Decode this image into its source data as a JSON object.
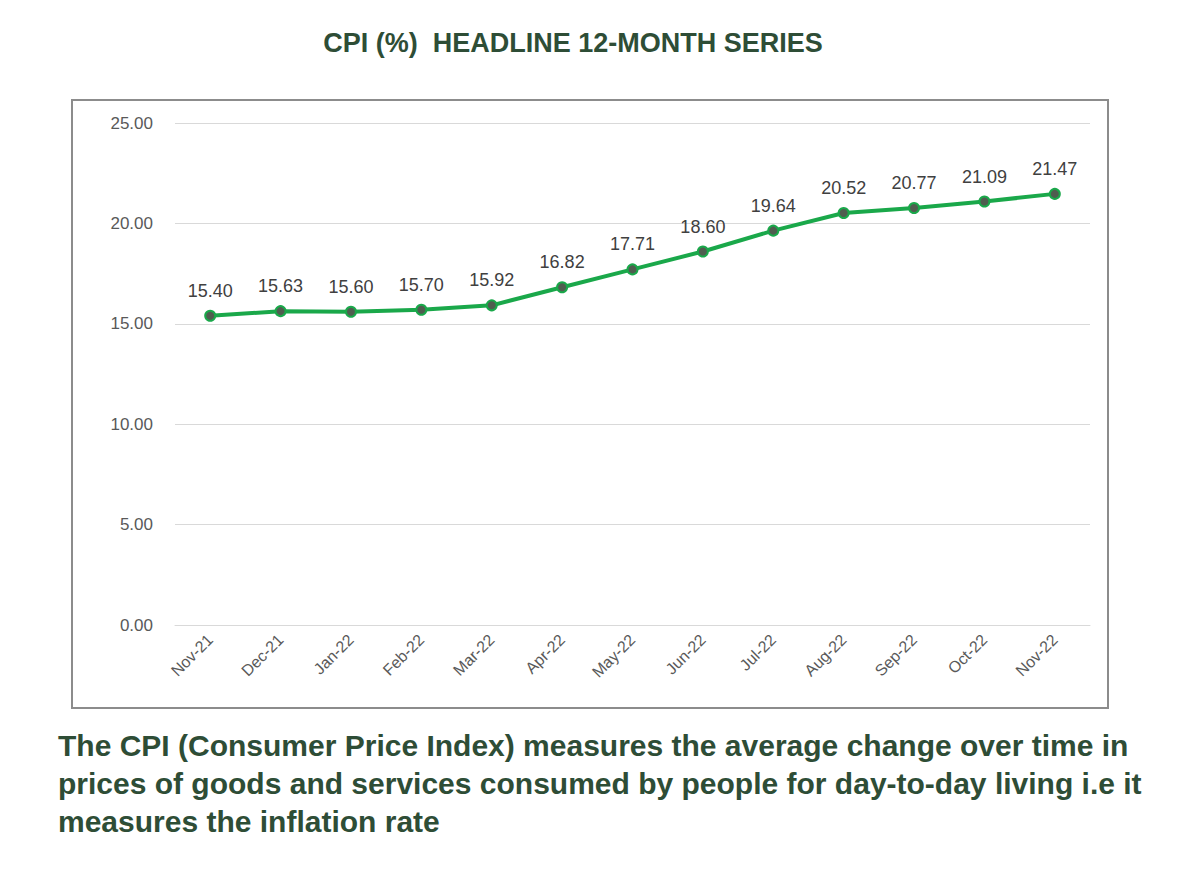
{
  "chart_data": {
    "type": "line",
    "title": "CPI (%)  HEADLINE 12-MONTH SERIES",
    "annotations": [
      "The CPI (Consumer Price Index) measures the average change over time in prices of goods and services consumed by people for day-to-day living i.e it measures the inflation rate"
    ],
    "categories": [
      "Nov-21",
      "Dec-21",
      "Jan-22",
      "Feb-22",
      "Mar-22",
      "Apr-22",
      "May-22",
      "Jun-22",
      "Jul-22",
      "Aug-22",
      "Sep-22",
      "Oct-22",
      "Nov-22"
    ],
    "values": [
      15.4,
      15.63,
      15.6,
      15.7,
      15.92,
      16.82,
      17.71,
      18.6,
      19.64,
      20.52,
      20.77,
      21.09,
      21.47
    ],
    "value_labels": [
      "15.40",
      "15.63",
      "15.60",
      "15.70",
      "15.92",
      "16.82",
      "17.71",
      "18.60",
      "19.64",
      "20.52",
      "20.77",
      "21.09",
      "21.47"
    ],
    "color": "#1aa84a",
    "marker": "circle",
    "line_style": "solid",
    "ylim": [
      0,
      25
    ],
    "yticks": [
      {
        "value": 0,
        "label": "0.00"
      },
      {
        "value": 5,
        "label": "5.00"
      },
      {
        "value": 10,
        "label": "10.00"
      },
      {
        "value": 15,
        "label": "15.00"
      },
      {
        "value": 20,
        "label": "20.00"
      },
      {
        "value": 25,
        "label": "25.00"
      }
    ],
    "grid": true,
    "data_labels": true
  }
}
